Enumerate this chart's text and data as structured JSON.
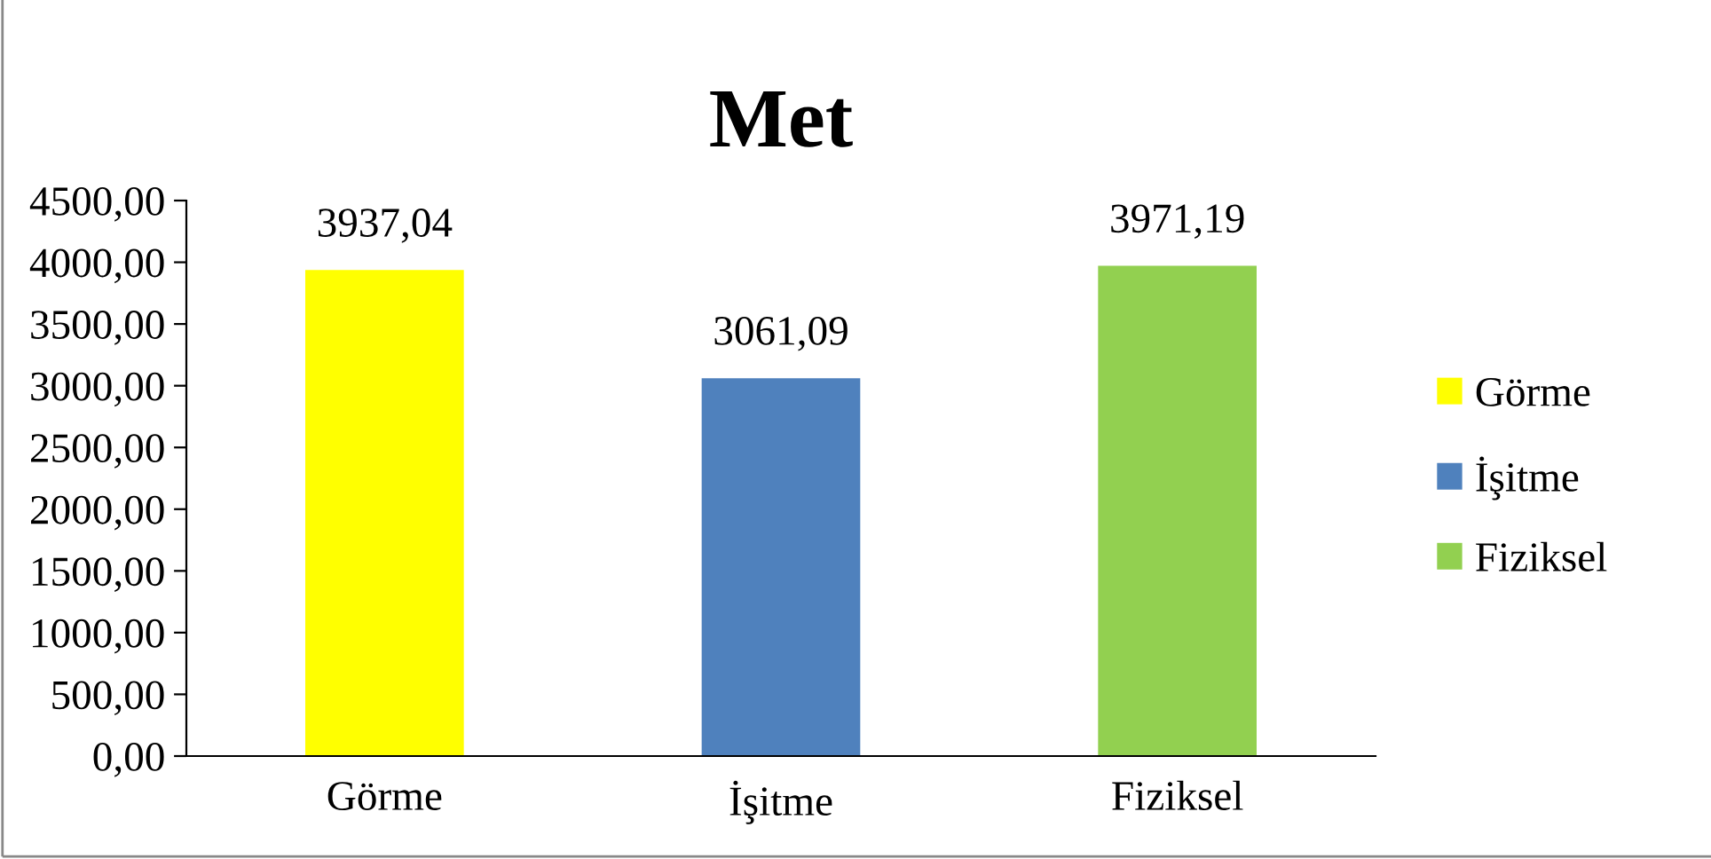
{
  "chart_data": {
    "type": "bar",
    "title": "Met",
    "categories": [
      "Görme",
      "İşitme",
      "Fiziksel"
    ],
    "series": [
      {
        "name": "Görme",
        "color": "#ffff00",
        "values": [
          3937.04,
          null,
          null
        ],
        "value_labels": [
          "3937,04",
          null,
          null
        ]
      },
      {
        "name": "İşitme",
        "color": "#4f81bd",
        "values": [
          null,
          3061.09,
          null
        ],
        "value_labels": [
          null,
          "3061,09",
          null
        ]
      },
      {
        "name": "Fiziksel",
        "color": "#92d050",
        "values": [
          null,
          null,
          3971.19
        ],
        "value_labels": [
          null,
          null,
          "3971,19"
        ]
      }
    ],
    "ylim": [
      0,
      4500
    ],
    "yticks": [
      {
        "value": 0,
        "label": "0,00"
      },
      {
        "value": 500,
        "label": "500,00"
      },
      {
        "value": 1000,
        "label": "1000,00"
      },
      {
        "value": 1500,
        "label": "1500,00"
      },
      {
        "value": 2000,
        "label": "2000,00"
      },
      {
        "value": 2500,
        "label": "2500,00"
      },
      {
        "value": 3000,
        "label": "3000,00"
      },
      {
        "value": 3500,
        "label": "3500,00"
      },
      {
        "value": 4000,
        "label": "4000,00"
      },
      {
        "value": 4500,
        "label": "4500,00"
      }
    ],
    "grid": false,
    "legend": "right"
  }
}
